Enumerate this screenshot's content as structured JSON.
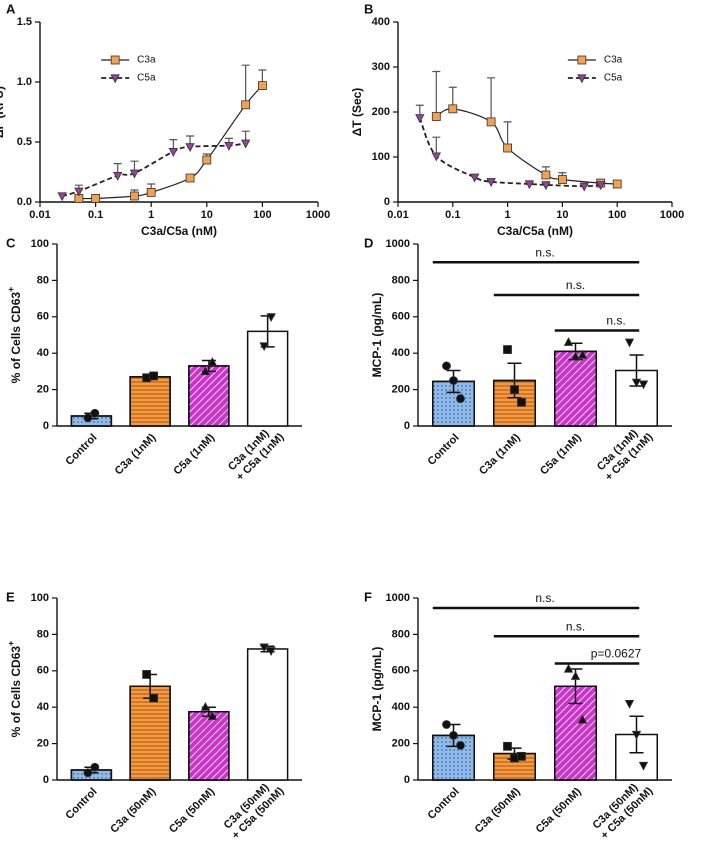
{
  "chart_data": [
    {
      "type": "line",
      "panel_label": "A",
      "x_label": "C3a/C5a (nM)",
      "y_label": "ΔF (RFU)",
      "xscale": "log",
      "xlim": [
        0.01,
        1000
      ],
      "xticks": [
        0.01,
        0.1,
        1,
        10,
        100,
        1000
      ],
      "ylim": [
        0,
        1.5
      ],
      "yticks": [
        {
          "value": 0,
          "label": "0.0"
        },
        0.5,
        {
          "value": 1,
          "label": "1.0"
        },
        1.5
      ],
      "legend": "top",
      "series": [
        {
          "name": "C3a",
          "color": "#f5a04a",
          "marker": "square",
          "line_style": "solid",
          "x": [
            0.05,
            0.1,
            0.5,
            1,
            5,
            10,
            50,
            100
          ],
          "values": [
            0.03,
            0.03,
            0.05,
            0.08,
            0.2,
            0.35,
            0.81,
            0.97
          ],
          "errors": [
            0.02,
            0.02,
            0.05,
            0.07,
            0.02,
            0.05,
            0.33,
            0.13
          ]
        },
        {
          "name": "C5a",
          "color": "#9b3fa0",
          "marker": "triangle-down",
          "line_style": "dashed",
          "x": [
            0.025,
            0.05,
            0.25,
            0.5,
            2.5,
            5,
            25,
            50
          ],
          "values": [
            0.05,
            0.09,
            0.22,
            0.24,
            0.42,
            0.46,
            0.47,
            0.49
          ],
          "errors": [
            0.02,
            0.05,
            0.1,
            0.1,
            0.1,
            0.09,
            0.06,
            0.1
          ]
        }
      ]
    },
    {
      "type": "line",
      "panel_label": "B",
      "x_label": "C3a/C5a (nM)",
      "y_label": "ΔT (Sec)",
      "xscale": "log",
      "xlim": [
        0.01,
        1000
      ],
      "xticks": [
        0.01,
        0.1,
        1,
        10,
        100,
        1000
      ],
      "ylim": [
        0,
        400
      ],
      "yticks": [
        0,
        100,
        200,
        300,
        400
      ],
      "legend": "top-right",
      "series": [
        {
          "name": "C3a",
          "color": "#f5a04a",
          "marker": "square",
          "line_style": "solid",
          "x": [
            0.05,
            0.1,
            0.5,
            1,
            5,
            10,
            50,
            100
          ],
          "values": [
            190,
            207,
            178,
            120,
            60,
            50,
            42,
            40
          ],
          "errors": [
            100,
            48,
            98,
            58,
            18,
            15,
            8,
            6
          ]
        },
        {
          "name": "C5a",
          "color": "#9b3fa0",
          "marker": "triangle-down",
          "line_style": "dashed",
          "x": [
            0.025,
            0.05,
            0.25,
            0.5,
            2.5,
            5,
            25,
            50
          ],
          "values": [
            187,
            102,
            55,
            45,
            40,
            38,
            35,
            38
          ],
          "errors": [
            28,
            42,
            5,
            4,
            3,
            3,
            3,
            3
          ]
        }
      ]
    },
    {
      "type": "bar",
      "panel_label": "C",
      "y_label": "% of Cells CD63",
      "y_label_sup": "+",
      "ylim": [
        0,
        100
      ],
      "yticks": [
        0,
        20,
        40,
        60,
        80,
        100
      ],
      "categories": [
        "Control",
        "C3a (1nM)",
        "C5a (1nM)",
        [
          "C3a (1nM)",
          "+ C5a (1nM)"
        ]
      ],
      "values": [
        5.5,
        27,
        33,
        52
      ],
      "errors": [
        1.5,
        0.5,
        3,
        8.5
      ],
      "points": [
        [
          4.5,
          7
        ],
        [
          26.5,
          27.5
        ],
        [
          30,
          35
        ],
        [
          44,
          60
        ]
      ],
      "colors": [
        "#8fbbec",
        "#f89a3c",
        "#cc33cc",
        "#ffffff"
      ],
      "patterns": [
        "dots",
        "horizontal",
        "diagonal",
        "none"
      ],
      "markers": [
        "circle",
        "square",
        "triangle",
        "triangle-down"
      ]
    },
    {
      "type": "bar",
      "panel_label": "D",
      "y_label": "MCP-1 (pg/mL)",
      "ylim": [
        0,
        1000
      ],
      "yticks": [
        0,
        200,
        400,
        600,
        800,
        1000
      ],
      "categories": [
        "Control",
        "C3a (1nM)",
        "C5a (1nM)",
        [
          "C3a (1nM)",
          "+ C5a (1nM)"
        ]
      ],
      "values": [
        245,
        250,
        410,
        305
      ],
      "errors": [
        60,
        95,
        45,
        85
      ],
      "points": [
        [
          330,
          250,
          150
        ],
        [
          420,
          200,
          130
        ],
        [
          460,
          380,
          390
        ],
        [
          460,
          240,
          230
        ]
      ],
      "colors": [
        "#8fbbec",
        "#f89a3c",
        "#cc33cc",
        "#ffffff"
      ],
      "patterns": [
        "dots",
        "horizontal",
        "diagonal",
        "none"
      ],
      "markers": [
        "circle",
        "square",
        "triangle",
        "triangle-down"
      ],
      "comparisons": [
        {
          "from": 0,
          "to": 3,
          "y": 900,
          "label": "n.s."
        },
        {
          "from": 1,
          "to": 3,
          "y": 720,
          "label": "n.s."
        },
        {
          "from": 2,
          "to": 3,
          "y": 525,
          "label": "n.s."
        }
      ]
    },
    {
      "type": "bar",
      "panel_label": "E",
      "y_label": "% of Cells CD63",
      "y_label_sup": "+",
      "ylim": [
        0,
        100
      ],
      "yticks": [
        0,
        20,
        40,
        60,
        80,
        100
      ],
      "categories": [
        "Control",
        "C3a (50nM)",
        "C5a (50nM)",
        [
          "C3a (50nM)",
          "+ C5a (50nM)"
        ]
      ],
      "values": [
        5.5,
        51.5,
        37.5,
        72
      ],
      "errors": [
        1.5,
        6.5,
        2.5,
        1.5
      ],
      "points": [
        [
          4,
          7
        ],
        [
          58,
          45
        ],
        [
          40,
          35
        ],
        [
          73,
          71
        ]
      ],
      "colors": [
        "#8fbbec",
        "#f89a3c",
        "#cc33cc",
        "#ffffff"
      ],
      "patterns": [
        "dots",
        "horizontal",
        "diagonal",
        "none"
      ],
      "markers": [
        "circle",
        "square",
        "triangle",
        "triangle-down"
      ]
    },
    {
      "type": "bar",
      "panel_label": "F",
      "y_label": "MCP-1 (pg/mL)",
      "ylim": [
        0,
        1000
      ],
      "yticks": [
        0,
        200,
        400,
        600,
        800,
        1000
      ],
      "categories": [
        "Control",
        "C3a (50nM)",
        "C5a (50nM)",
        [
          "C3a (50nM)",
          "+ C5a (50nM)"
        ]
      ],
      "values": [
        245,
        145,
        515,
        250
      ],
      "errors": [
        60,
        30,
        95,
        100
      ],
      "points": [
        [
          305,
          245,
          190
        ],
        [
          185,
          120,
          130
        ],
        [
          610,
          570,
          330
        ],
        [
          420,
          250,
          80
        ]
      ],
      "colors": [
        "#8fbbec",
        "#f89a3c",
        "#cc33cc",
        "#ffffff"
      ],
      "patterns": [
        "dots",
        "horizontal",
        "diagonal",
        "none"
      ],
      "markers": [
        "circle",
        "square",
        "triangle",
        "triangle-down"
      ],
      "comparisons": [
        {
          "from": 0,
          "to": 3,
          "y": 945,
          "label": "n.s."
        },
        {
          "from": 1,
          "to": 3,
          "y": 790,
          "label": "n.s."
        },
        {
          "from": 2,
          "to": 3,
          "y": 640,
          "label": "p=0.0627"
        }
      ]
    }
  ]
}
